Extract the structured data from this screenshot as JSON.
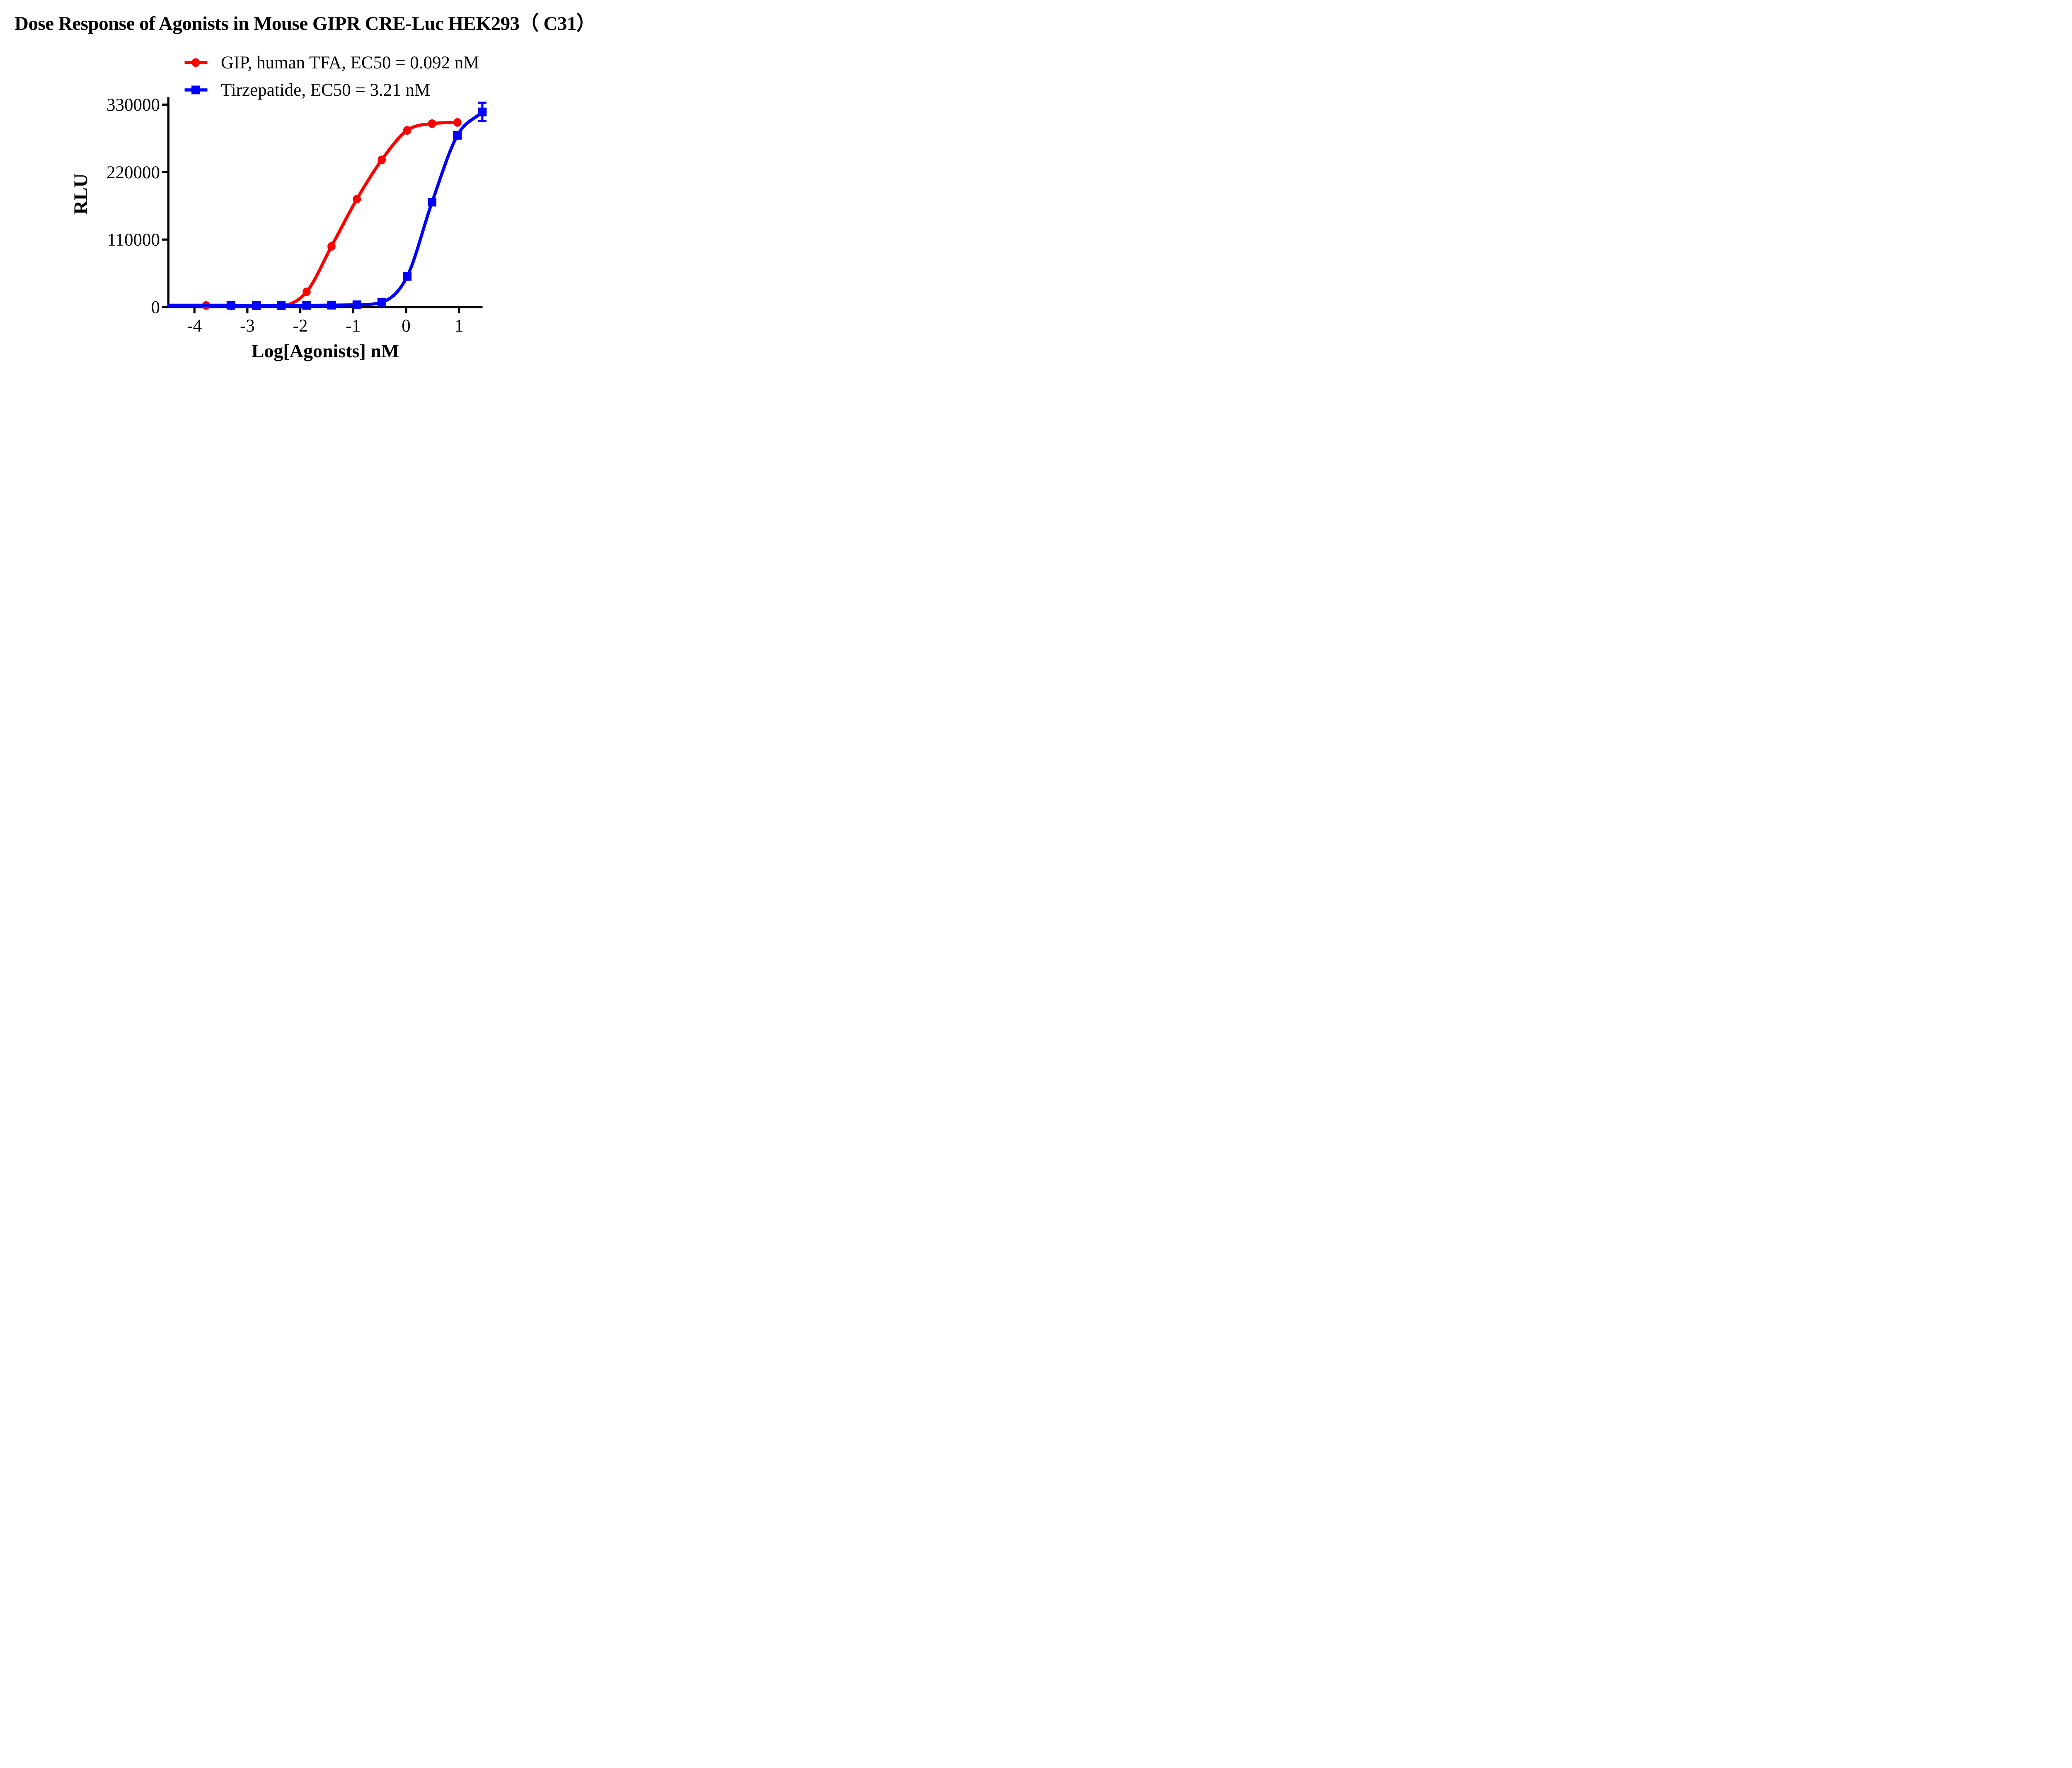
{
  "title": "Dose Response of Agonists in Mouse GIPR CRE-Luc HEK293（ C31）",
  "legend": {
    "items": [
      {
        "label": "GIP, human TFA, EC50 = 0.092 nM",
        "marker": "circle",
        "color": "#FF0000"
      },
      {
        "label": "Tirzepatide, EC50 = 3.21 nM",
        "marker": "square",
        "color": "#0000FF"
      }
    ]
  },
  "chart_data": {
    "type": "line",
    "title": "Dose Response of Agonists in Mouse GIPR CRE-Luc HEK293（ C31）",
    "xlabel": "Log[Agonists] nM",
    "ylabel": "RLU",
    "x_ticks": [
      -4,
      -3,
      -2,
      -1,
      0,
      1
    ],
    "y_ticks": [
      0,
      110000,
      220000,
      330000
    ],
    "xlim": [
      -4.49,
      1.56
    ],
    "ylim": [
      0,
      330000
    ],
    "grid": false,
    "legend_position": "top",
    "axis_color": "#000000",
    "series": [
      {
        "name": "GIP, human TFA",
        "ec50_nM": 0.092,
        "color": "#FF0000",
        "marker": "circle",
        "x": [
          -3.78,
          -3.31,
          -2.83,
          -2.36,
          -1.88,
          -1.41,
          -0.93,
          -0.46,
          0.02,
          0.49,
          0.97
        ],
        "y": [
          2600,
          2200,
          2000,
          2400,
          25000,
          99000,
          176000,
          240000,
          288000,
          299000,
          301000
        ],
        "y_err": [
          0,
          0,
          0,
          0,
          0,
          0,
          0,
          0,
          0,
          0,
          0
        ]
      },
      {
        "name": "Tirzepatide",
        "ec50_nM": 3.21,
        "color": "#0000FF",
        "marker": "square",
        "x": [
          -3.31,
          -2.83,
          -2.36,
          -1.88,
          -1.41,
          -0.93,
          -0.46,
          0.02,
          0.49,
          0.97,
          1.44
        ],
        "y": [
          3000,
          2500,
          2500,
          2800,
          3200,
          3800,
          8000,
          50000,
          171000,
          280000,
          318000
        ],
        "y_err": [
          0,
          0,
          0,
          0,
          0,
          0,
          0,
          0,
          0,
          0,
          15000
        ]
      }
    ]
  }
}
